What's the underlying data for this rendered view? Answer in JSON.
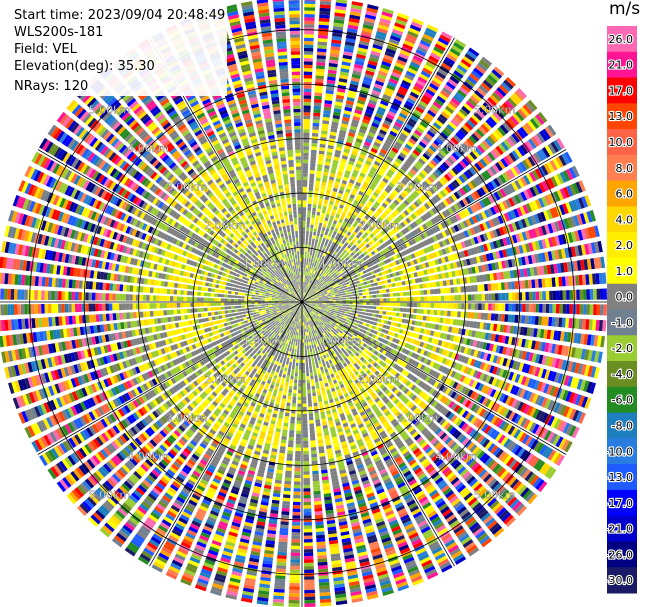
{
  "header": {
    "start_time": "Start time: 2023/09/04 20:48:49",
    "instrument": "WLS200s-181",
    "field": "Field: VEL",
    "elevation": "Elevation(deg): 35.30",
    "nrays": "NRays: 120"
  },
  "chart_data": {
    "type": "heatmap",
    "projection": "polar PPI scan",
    "title": "",
    "nrays": 120,
    "range_rings_km": [
      1.0,
      2.0,
      3.0,
      4.0,
      5.0
    ],
    "range_ring_labels": [
      "1.00km",
      "2.00km",
      "3.00km",
      "4.00km",
      "5.00km"
    ],
    "azimuth_spokes": 12,
    "colorbar": {
      "unit": "m/s",
      "tick_labels": [
        "26.0",
        "21.0",
        "17.0",
        "13.0",
        "10.0",
        "8.0",
        "6.0",
        "4.0",
        "2.0",
        "1.0",
        "0.0",
        "-1.0",
        "-2.0",
        "-4.0",
        "-6.0",
        "-8.0",
        "-10.0",
        "-13.0",
        "-17.0",
        "-21.0",
        "-26.0",
        "-30.0"
      ],
      "bins": [
        {
          "lo": -30,
          "hi": -26,
          "color": "#1a1a66"
        },
        {
          "lo": -26,
          "hi": -21,
          "color": "#000080"
        },
        {
          "lo": -21,
          "hi": -17,
          "color": "#0000cc"
        },
        {
          "lo": -17,
          "hi": -13,
          "color": "#0000ff"
        },
        {
          "lo": -13,
          "hi": -10,
          "color": "#1e5cff"
        },
        {
          "lo": -10,
          "hi": -8,
          "color": "#2a7de0"
        },
        {
          "lo": -8,
          "hi": -6,
          "color": "#1e7fbf"
        },
        {
          "lo": -6,
          "hi": -4,
          "color": "#228b22"
        },
        {
          "lo": -4,
          "hi": -2,
          "color": "#6b8e23"
        },
        {
          "lo": -2,
          "hi": -1,
          "color": "#9acd32"
        },
        {
          "lo": -1,
          "hi": 0,
          "color": "#708090"
        },
        {
          "lo": 0,
          "hi": 1,
          "color": "#808080"
        },
        {
          "lo": 1,
          "hi": 2,
          "color": "#ffff00"
        },
        {
          "lo": 2,
          "hi": 4,
          "color": "#ffee00"
        },
        {
          "lo": 4,
          "hi": 6,
          "color": "#ffd700"
        },
        {
          "lo": 6,
          "hi": 8,
          "color": "#ffa500"
        },
        {
          "lo": 8,
          "hi": 10,
          "color": "#ff7f50"
        },
        {
          "lo": 10,
          "hi": 13,
          "color": "#ff6347"
        },
        {
          "lo": 13,
          "hi": 17,
          "color": "#ff4500"
        },
        {
          "lo": 17,
          "hi": 21,
          "color": "#ff0000"
        },
        {
          "lo": 21,
          "hi": 26,
          "color": "#ff1493"
        },
        {
          "lo": 26,
          "hi": 30,
          "color": "#ff69b4"
        }
      ]
    },
    "summary": "Near radar (< ~1 km) returns are mostly gray (0 m/s) with green (-1 to -2 m/s); a yellow/green ring of +1 to +6 m/s sits around 1.5-3 km; beyond ~3 km the field is noisy with all colors."
  }
}
